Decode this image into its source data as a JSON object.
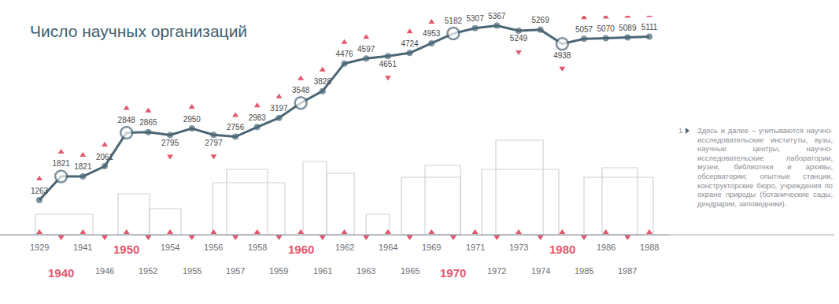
{
  "chart_data": {
    "type": "line",
    "title": "Число научных организаций",
    "categories": [
      "1929",
      "1940",
      "1941",
      "1946",
      "1950",
      "1952",
      "1954",
      "1955",
      "1956",
      "1957",
      "1958",
      "1959",
      "1960",
      "1961",
      "1962",
      "1963",
      "1964",
      "1965",
      "1969",
      "1970",
      "1971",
      "1972",
      "1973",
      "1974",
      "1980",
      "1985",
      "1986",
      "1987",
      "1988"
    ],
    "values": [
      1263,
      1821,
      1821,
      2061,
      2848,
      2865,
      2795,
      2950,
      2797,
      2756,
      2983,
      3197,
      3548,
      3828,
      4476,
      4597,
      4651,
      4724,
      4953,
      5182,
      5307,
      5367,
      5249,
      5269,
      4938,
      5057,
      5070,
      5089,
      5111
    ],
    "color": "#4b6676",
    "marker": "circle",
    "data_labels": true,
    "ylim": [
      450,
      5600
    ],
    "tick_labels": "x",
    "grid": false
  },
  "footnote": {
    "marker": "1",
    "text": "Здесь и далее – учитываются научно-исследовательские институты, вузы, научные центры, научно-исследовательские лаборатории, музеи, библиотеки и архивы, обсерватории; опытные станции, конструкторские бюро, учреждения по охране природы (ботанические сады, дендрарии, заповедники)."
  }
}
